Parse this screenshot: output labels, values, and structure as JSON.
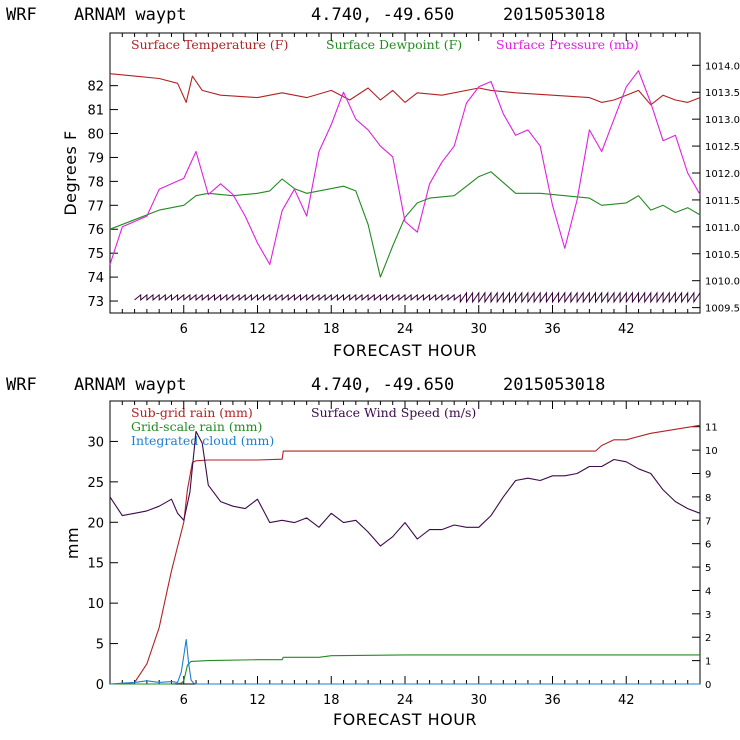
{
  "chart_data": [
    {
      "type": "line",
      "header": {
        "model": "WRF",
        "site": "ARNAM waypt",
        "coords": "4.740, -49.650",
        "date": "2015053018"
      },
      "xlabel": "FORECAST HOUR",
      "ylabel": "Degrees F",
      "xlim": [
        0,
        48
      ],
      "xticks": [
        "6",
        "12",
        "18",
        "24",
        "30",
        "36",
        "42"
      ],
      "ylim": [
        72.5,
        84.2
      ],
      "yticks": [
        "73",
        "74",
        "75",
        "76",
        "77",
        "78",
        "79",
        "80",
        "81",
        "82"
      ],
      "y2lim": [
        1009.4,
        1014.6
      ],
      "y2ticks": [
        "1009.5",
        "1010.0",
        "1010.5",
        "1011.0",
        "1011.5",
        "1012.0",
        "1012.5",
        "1013.0",
        "1013.5",
        "1014.0"
      ],
      "series": [
        {
          "name": "Surface Temperature (F)",
          "color": "#b22222",
          "axis": "left",
          "x": [
            0,
            2,
            4,
            5.5,
            6.2,
            6.7,
            7.5,
            9,
            12,
            14,
            16,
            18,
            19.5,
            21,
            22,
            23,
            24,
            25,
            27,
            30,
            31,
            33,
            36,
            39,
            40,
            41,
            42,
            43,
            44,
            45,
            46,
            47,
            48
          ],
          "y": [
            82.5,
            82.4,
            82.3,
            82.1,
            81.3,
            82.4,
            81.8,
            81.6,
            81.5,
            81.7,
            81.5,
            81.8,
            81.4,
            81.9,
            81.4,
            81.8,
            81.3,
            81.7,
            81.6,
            81.9,
            81.8,
            81.7,
            81.6,
            81.5,
            81.3,
            81.4,
            81.6,
            81.8,
            81.2,
            81.6,
            81.4,
            81.3,
            81.5
          ]
        },
        {
          "name": "Surface Dewpoint (F)",
          "color": "#228b22",
          "axis": "left",
          "x": [
            0,
            2,
            4,
            6,
            7,
            8,
            10,
            12,
            13,
            14,
            15,
            16,
            17,
            18,
            19,
            20,
            21,
            22,
            23,
            24,
            25,
            26,
            28,
            29,
            30,
            31,
            33,
            35,
            37,
            39,
            40,
            42,
            43,
            44,
            45,
            46,
            47,
            48
          ],
          "y": [
            76.0,
            76.4,
            76.8,
            77.0,
            77.4,
            77.5,
            77.4,
            77.5,
            77.6,
            78.1,
            77.7,
            77.5,
            77.6,
            77.7,
            77.8,
            77.6,
            76.2,
            74.0,
            75.3,
            76.5,
            77.1,
            77.3,
            77.4,
            77.8,
            78.2,
            78.4,
            77.5,
            77.5,
            77.4,
            77.3,
            77.0,
            77.1,
            77.4,
            76.8,
            77.0,
            76.7,
            76.9,
            76.6
          ]
        },
        {
          "name": "Surface Pressure (mb)",
          "color": "#e020e0",
          "axis": "right",
          "x": [
            0,
            1,
            2,
            3,
            4,
            5,
            6,
            7,
            8,
            9,
            10,
            11,
            12,
            13,
            14,
            15,
            16,
            17,
            18,
            19,
            20,
            21,
            22,
            23,
            24,
            25,
            26,
            27,
            28,
            29,
            30,
            31,
            32,
            33,
            34,
            35,
            36,
            37,
            38,
            39,
            40,
            41,
            42,
            43,
            44,
            45,
            46,
            47,
            48
          ],
          "y": [
            1010.3,
            1011.0,
            1011.1,
            1011.2,
            1011.7,
            1011.8,
            1011.9,
            1012.4,
            1011.6,
            1011.8,
            1011.6,
            1011.2,
            1010.7,
            1010.3,
            1011.3,
            1011.7,
            1011.2,
            1012.4,
            1012.9,
            1013.5,
            1013.0,
            1012.8,
            1012.5,
            1012.3,
            1011.1,
            1010.9,
            1011.8,
            1012.2,
            1012.5,
            1013.3,
            1013.6,
            1013.7,
            1013.1,
            1012.7,
            1012.8,
            1012.5,
            1011.4,
            1010.6,
            1011.5,
            1012.8,
            1012.4,
            1013.0,
            1013.6,
            1013.9,
            1013.3,
            1012.6,
            1012.7,
            1012.0,
            1011.6
          ]
        },
        {
          "name": "Wind barbs",
          "color": "#330033",
          "axis": "left",
          "x": [
            2,
            48
          ],
          "y": [
            73.15,
            73.15
          ]
        }
      ],
      "legend": [
        "Surface Temperature (F)",
        "Surface Dewpoint (F)",
        "Surface Pressure (mb)"
      ]
    },
    {
      "type": "line",
      "header": {
        "model": "WRF",
        "site": "ARNAM waypt",
        "coords": "4.740, -49.650",
        "date": "2015053018"
      },
      "xlabel": "FORECAST HOUR",
      "ylabel": "mm",
      "xlim": [
        0,
        48
      ],
      "xticks": [
        "6",
        "12",
        "18",
        "24",
        "30",
        "36",
        "42"
      ],
      "ylim": [
        0,
        35
      ],
      "yticks": [
        "0",
        "5",
        "10",
        "15",
        "20",
        "25",
        "30"
      ],
      "y2lim": [
        0,
        12.1
      ],
      "y2ticks": [
        "0",
        "1",
        "2",
        "3",
        "4",
        "5",
        "6",
        "7",
        "8",
        "9",
        "10",
        "11"
      ],
      "series": [
        {
          "name": "Sub-grid rain (mm)",
          "color": "#b22222",
          "axis": "left",
          "x": [
            0,
            1,
            2,
            3,
            4,
            4.5,
            5,
            5.5,
            6,
            6.3,
            6.7,
            7,
            8,
            10,
            12,
            14,
            14.1,
            18,
            24,
            30,
            36,
            39.5,
            40,
            41,
            42,
            44,
            46,
            48
          ],
          "y": [
            0,
            0,
            0.2,
            2.5,
            7,
            10.5,
            14,
            17,
            20,
            24,
            27.4,
            27.6,
            27.7,
            27.7,
            27.7,
            27.8,
            28.8,
            28.8,
            28.8,
            28.8,
            28.8,
            28.8,
            29.5,
            30.2,
            30.2,
            31.0,
            31.5,
            32.0
          ]
        },
        {
          "name": "Grid-scale rain (mm)",
          "color": "#228b22",
          "axis": "left",
          "x": [
            0,
            5,
            5.8,
            6,
            6.3,
            6.6,
            8,
            12,
            14,
            14.1,
            17,
            18,
            24,
            30,
            36,
            42,
            48
          ],
          "y": [
            0,
            0,
            0.1,
            0.4,
            2.3,
            2.8,
            2.9,
            3.0,
            3.0,
            3.3,
            3.3,
            3.5,
            3.6,
            3.6,
            3.6,
            3.6,
            3.6
          ]
        },
        {
          "name": "Integrated cloud (mm)",
          "color": "#1e7fd0",
          "axis": "left",
          "x": [
            0,
            2,
            3,
            4,
            5,
            5.5,
            5.8,
            6,
            6.2,
            6.4,
            6.6,
            6.8,
            7,
            7.5,
            8,
            10,
            12,
            18,
            24,
            30,
            36,
            42,
            48
          ],
          "y": [
            0,
            0.2,
            0.4,
            0.2,
            0.3,
            0.2,
            1.5,
            3.5,
            5.5,
            2.5,
            0.5,
            0.1,
            0,
            0,
            0,
            0,
            0,
            0,
            0,
            0,
            0,
            0,
            0
          ]
        },
        {
          "name": "Surface Wind Speed (m/s)",
          "color": "#3d0a4a",
          "axis": "right",
          "x": [
            0,
            1,
            2,
            3,
            4,
            5,
            5.5,
            6,
            6.5,
            7,
            7.5,
            8,
            9,
            10,
            11,
            12,
            13,
            14,
            15,
            16,
            17,
            18,
            19,
            20,
            21,
            22,
            23,
            24,
            25,
            26,
            27,
            28,
            29,
            30,
            31,
            32,
            33,
            34,
            35,
            36,
            37,
            38,
            39,
            40,
            41,
            42,
            43,
            44,
            45,
            46,
            47,
            48
          ],
          "y": [
            8.0,
            7.2,
            7.3,
            7.4,
            7.6,
            7.9,
            7.3,
            7.0,
            8.2,
            10.8,
            10.3,
            8.5,
            7.8,
            7.6,
            7.5,
            7.9,
            6.9,
            7.0,
            6.9,
            7.1,
            6.7,
            7.3,
            6.9,
            7.0,
            6.5,
            5.9,
            6.3,
            6.9,
            6.2,
            6.6,
            6.6,
            6.8,
            6.7,
            6.7,
            7.2,
            8.0,
            8.7,
            8.8,
            8.7,
            8.9,
            8.9,
            9.0,
            9.3,
            9.3,
            9.6,
            9.5,
            9.2,
            9.0,
            8.3,
            7.8,
            7.5,
            7.3
          ]
        }
      ],
      "legend": [
        "Sub-grid rain (mm)",
        "Surface Wind Speed (m/s)",
        "Grid-scale rain (mm)",
        "Integrated cloud (mm)"
      ]
    }
  ]
}
